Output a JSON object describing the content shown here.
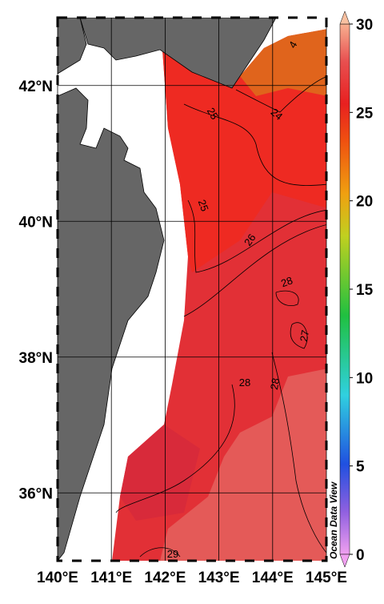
{
  "map": {
    "lon_range": [
      140,
      145
    ],
    "lat_range": [
      35,
      43
    ],
    "lon_ticks": [
      {
        "value": 140,
        "label": "140°E"
      },
      {
        "value": 141,
        "label": "141°E"
      },
      {
        "value": 142,
        "label": "142°E"
      },
      {
        "value": 143,
        "label": "143°E"
      },
      {
        "value": 144,
        "label": "144°E"
      },
      {
        "value": 145,
        "label": "145°E"
      }
    ],
    "lat_ticks": [
      {
        "value": 36,
        "label": "36°N"
      },
      {
        "value": 38,
        "label": "38°N"
      },
      {
        "value": 40,
        "label": "40°N"
      },
      {
        "value": 42,
        "label": "42°N"
      }
    ]
  },
  "colorbar": {
    "range": [
      0,
      30
    ],
    "ticks": [
      0,
      5,
      10,
      15,
      20,
      25,
      30
    ]
  },
  "contour_labels": [
    "4",
    "24",
    "25",
    "25",
    "26",
    "28",
    "27",
    "28",
    "28",
    "29"
  ],
  "watermark": "Ocean Data View"
}
